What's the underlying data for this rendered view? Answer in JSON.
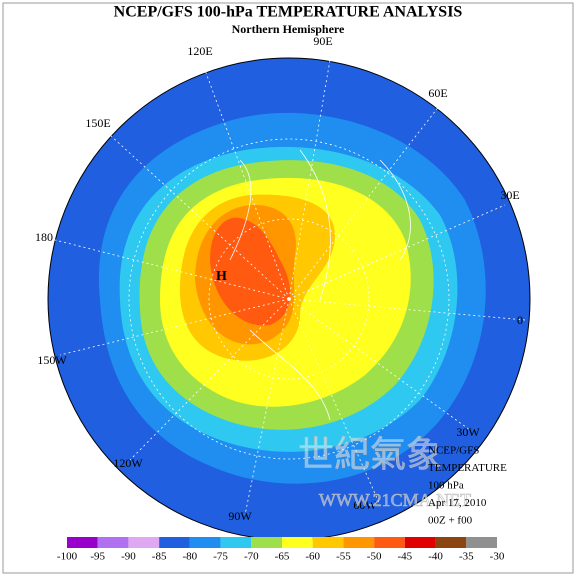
{
  "header": {
    "title": "NCEP/GFS 100-hPa TEMPERATURE ANALYSIS",
    "subtitle": "Northern Hemisphere"
  },
  "map": {
    "longitude_labels": [
      "90E",
      "120E",
      "60E",
      "150E",
      "30E",
      "180",
      "0",
      "150W",
      "30W",
      "120W",
      "60W",
      "90W"
    ],
    "high_label": "H",
    "info": [
      "NCEP/GFS",
      "TEMPERATURE",
      "100 hPa",
      "Apr 17, 2010",
      "00Z + f00"
    ],
    "watermark": [
      "世紀氣象",
      "WWW.21CMA.NET"
    ]
  },
  "legend": {
    "ticks": [
      -100,
      -95,
      -90,
      -85,
      -80,
      -75,
      -70,
      -65,
      -60,
      -55,
      -50,
      -45,
      -40,
      -35,
      -30
    ],
    "colors": [
      "#9900cc",
      "#b070f0",
      "#e0a8f0",
      "#1f5fe0",
      "#1f8ef0",
      "#2ec8f0",
      "#9fe04a",
      "#ffff20",
      "#ffc800",
      "#ff9600",
      "#ff5a10",
      "#e00000",
      "#8b4513",
      "#909090"
    ]
  }
}
